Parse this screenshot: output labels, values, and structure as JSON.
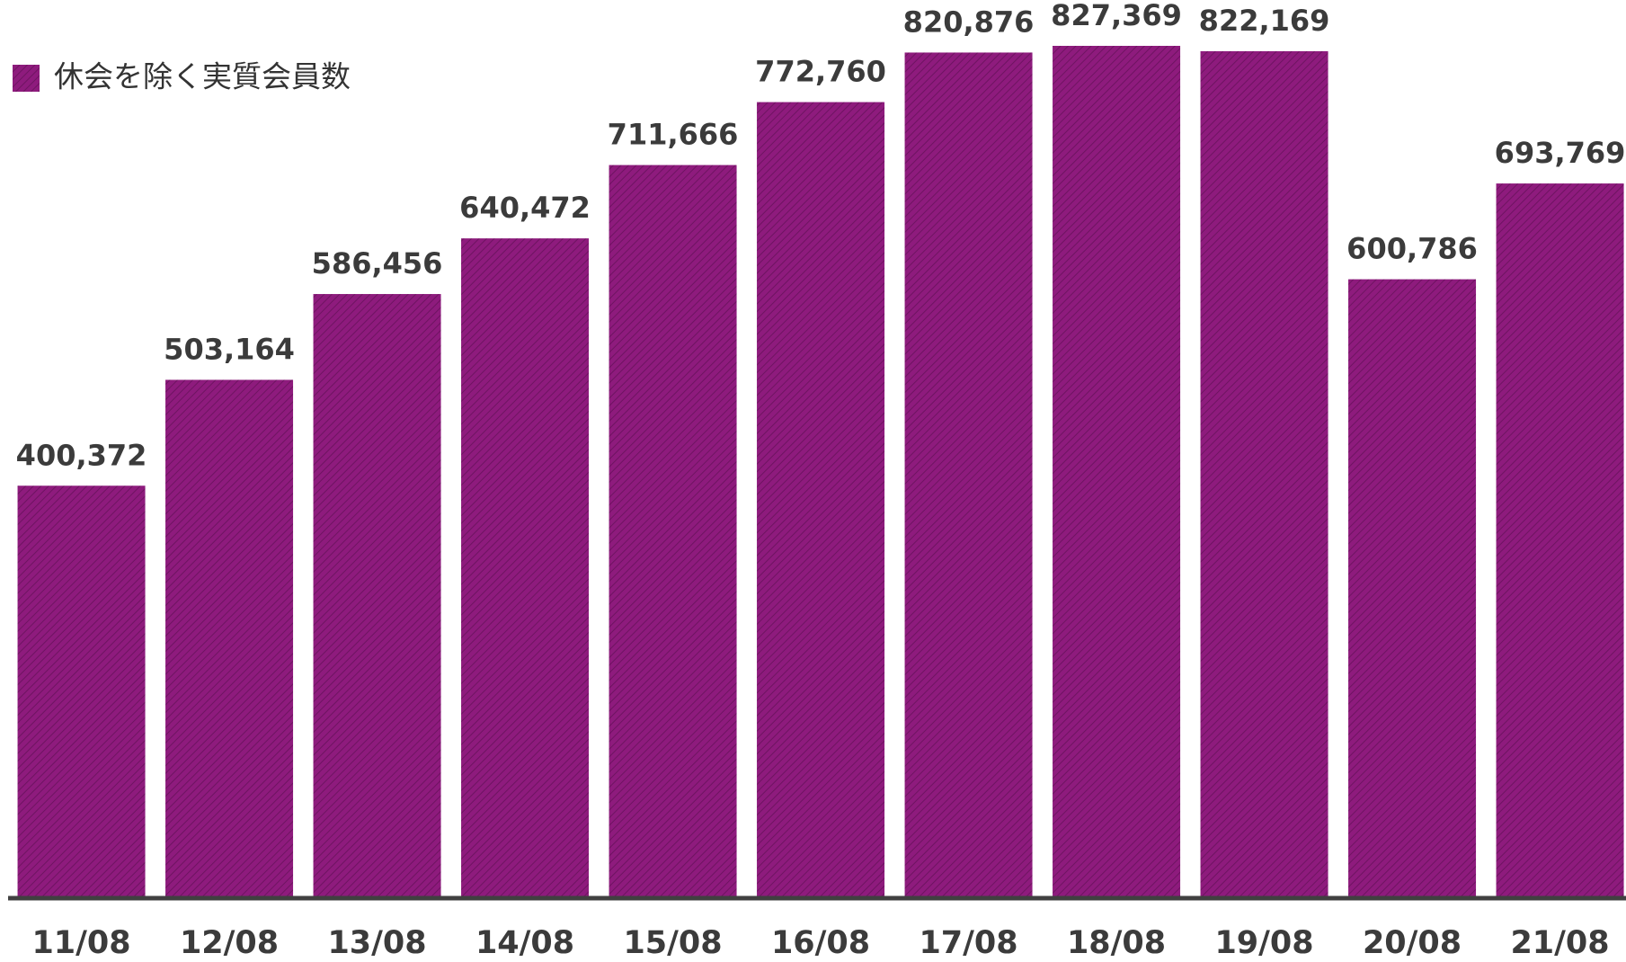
{
  "chart_data": {
    "type": "bar",
    "categories": [
      "11/08",
      "12/08",
      "13/08",
      "14/08",
      "15/08",
      "16/08",
      "17/08",
      "18/08",
      "19/08",
      "20/08",
      "21/08"
    ],
    "series": [
      {
        "name": "休会を除く実質会員数",
        "color": "#8e1b7d",
        "values": [
          400372,
          503164,
          586456,
          640472,
          711666,
          772760,
          820876,
          827369,
          822169,
          600786,
          693769
        ],
        "value_labels": [
          "400,372",
          "503,164",
          "586,456",
          "640,472",
          "711,666",
          "772,760",
          "820,876",
          "827,369",
          "822,169",
          "600,786",
          "693,769"
        ]
      }
    ],
    "legend": "top-left"
  }
}
